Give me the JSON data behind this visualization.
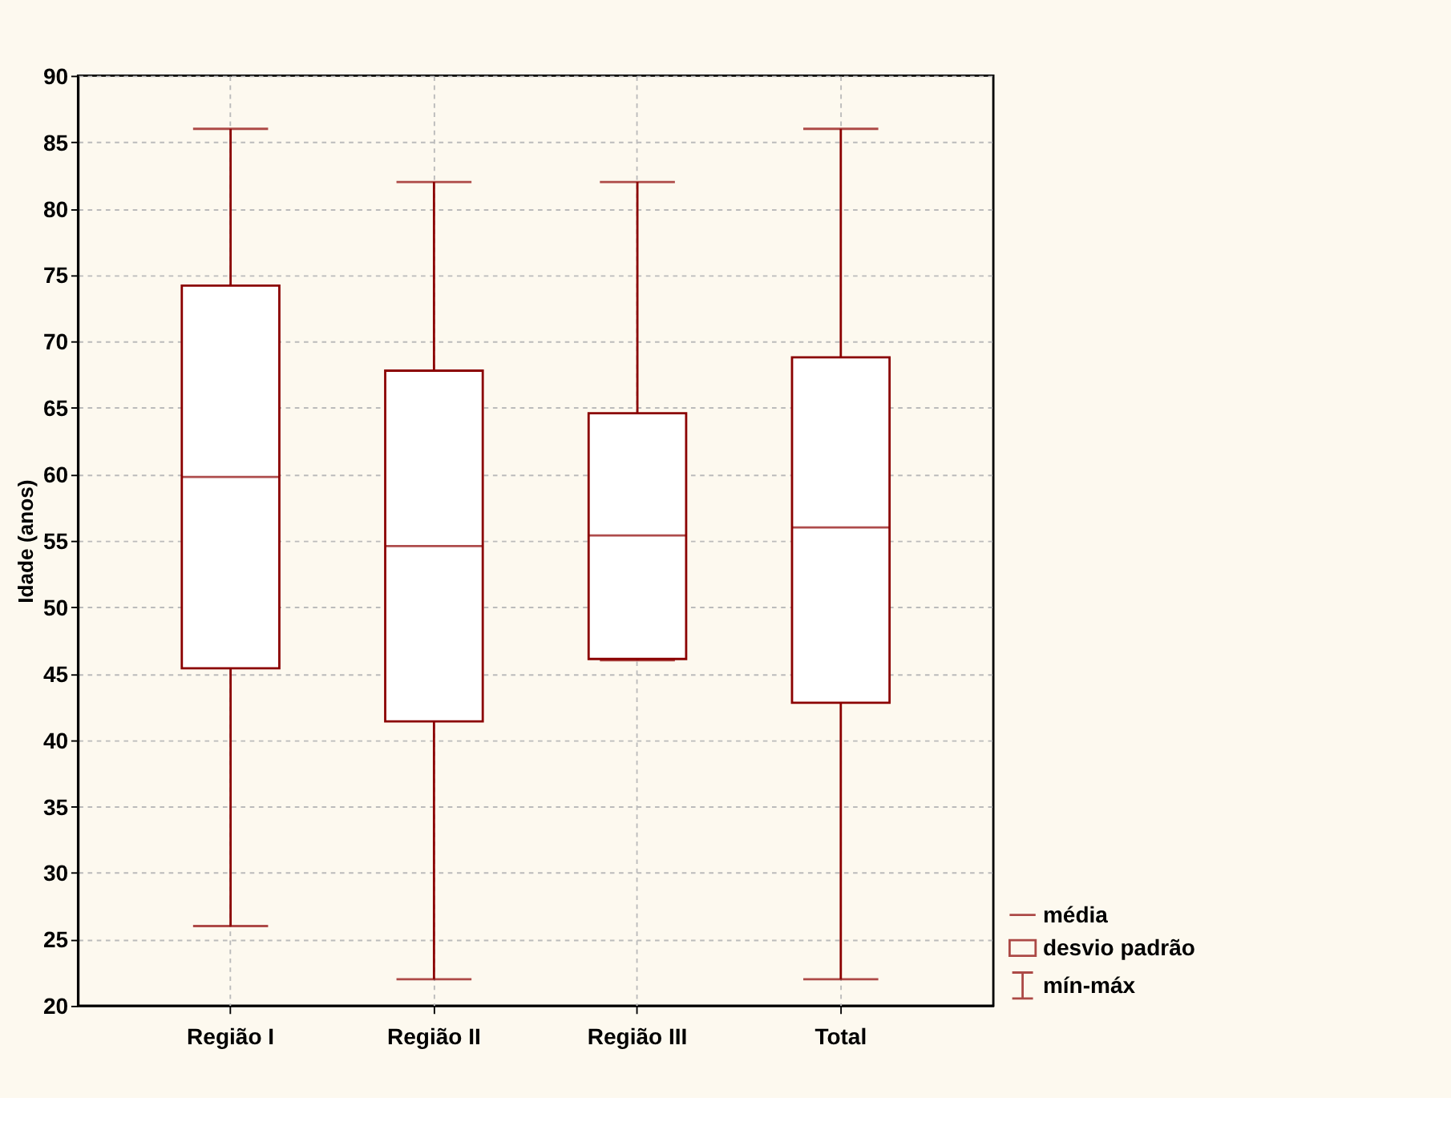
{
  "chart_data": {
    "type": "box",
    "ylabel": "Idade (anos)",
    "categories": [
      "Região I",
      "Região II",
      "Região III",
      "Total"
    ],
    "series": [
      {
        "color": "#8b0000",
        "boxes": [
          {
            "low": 26,
            "q1": 45.4,
            "median": 59.8,
            "q3": 74.2,
            "high": 86
          },
          {
            "low": 22,
            "q1": 41.4,
            "median": 54.6,
            "q3": 67.8,
            "high": 82
          },
          {
            "low": 46,
            "q1": 46.1,
            "median": 55.4,
            "q3": 64.6,
            "high": 82
          },
          {
            "low": 22,
            "q1": 42.8,
            "median": 56,
            "q3": 68.8,
            "high": 86
          }
        ]
      }
    ],
    "ylim": [
      20,
      90
    ],
    "yticks": [
      20,
      25,
      30,
      35,
      40,
      45,
      50,
      55,
      60,
      65,
      70,
      75,
      80,
      85,
      90
    ],
    "grid": true,
    "annotations": [
      "média",
      "desvio padrão",
      "mín-máx"
    ]
  }
}
